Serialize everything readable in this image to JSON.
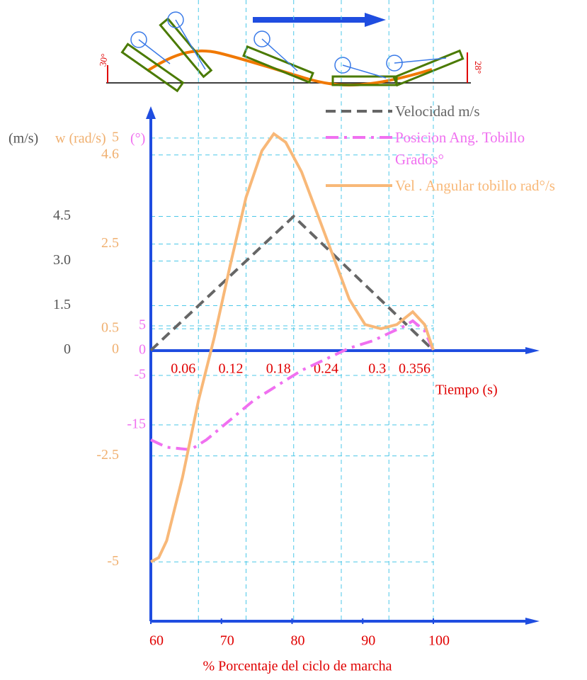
{
  "chart_data": {
    "type": "line",
    "x_label": "Tiempo (s)",
    "xlim": [
      0,
      0.356
    ],
    "xticks": [
      0.06,
      0.12,
      0.18,
      0.24,
      0.3,
      0.356
    ],
    "x2_label": "% Porcentaje del ciclo de marcha",
    "x2lim": [
      60,
      100
    ],
    "x2ticks": [
      60,
      70,
      80,
      90,
      100
    ],
    "y_label": "(m/s)",
    "ylim": [
      -9.1,
      8.2
    ],
    "yticks": [
      0,
      1.5,
      {
        "value": 3,
        "label": "3.0"
      },
      4.5
    ],
    "y2_label": "w (rad/s)",
    "y2lim": [
      -6.4,
      5.75
    ],
    "y2ticks": [
      -5,
      -2.5,
      0,
      0.5,
      2.5,
      4.6,
      5
    ],
    "y3_label": "(°)",
    "y3lim": [
      -54.6,
      49.3
    ],
    "y3ticks": [
      -15,
      -5,
      0,
      5
    ],
    "grid": true,
    "annotations": [
      "30°",
      "28°"
    ],
    "series": [
      {
        "name": "Velocidad m/s",
        "color": "#666666",
        "axis": "y",
        "style": "dashed",
        "x": [
          0,
          0.18,
          0.356
        ],
        "values": [
          0,
          4.5,
          0
        ]
      },
      {
        "name": "Posicion Ang. Tobillo Grados°",
        "color": "#f070f0",
        "axis": "y3",
        "style": "dashdot",
        "x": [
          0,
          0.02,
          0.05,
          0.07,
          0.1,
          0.13,
          0.16,
          0.19,
          0.23,
          0.25,
          0.28,
          0.3,
          0.32,
          0.33,
          0.345,
          0.356
        ],
        "values": [
          -18,
          -19.5,
          -20,
          -18,
          -14,
          -10,
          -7,
          -4,
          -1,
          0.5,
          2,
          3.5,
          5,
          6,
          4,
          0
        ]
      },
      {
        "name": "Vel . Angular tobillo rad°/s",
        "color": "#f8b878",
        "axis": "y2",
        "style": "solid",
        "x": [
          0,
          0.01,
          0.02,
          0.04,
          0.06,
          0.08,
          0.1,
          0.12,
          0.14,
          0.155,
          0.17,
          0.19,
          0.21,
          0.23,
          0.25,
          0.27,
          0.29,
          0.31,
          0.33,
          0.345,
          0.356
        ],
        "values": [
          -5,
          -4.9,
          -4.5,
          -3,
          -1.2,
          0.3,
          2,
          3.6,
          4.7,
          5.1,
          4.9,
          4.2,
          3.2,
          2.2,
          1.2,
          0.6,
          0.5,
          0.6,
          0.9,
          0.6,
          0
        ]
      }
    ]
  }
}
